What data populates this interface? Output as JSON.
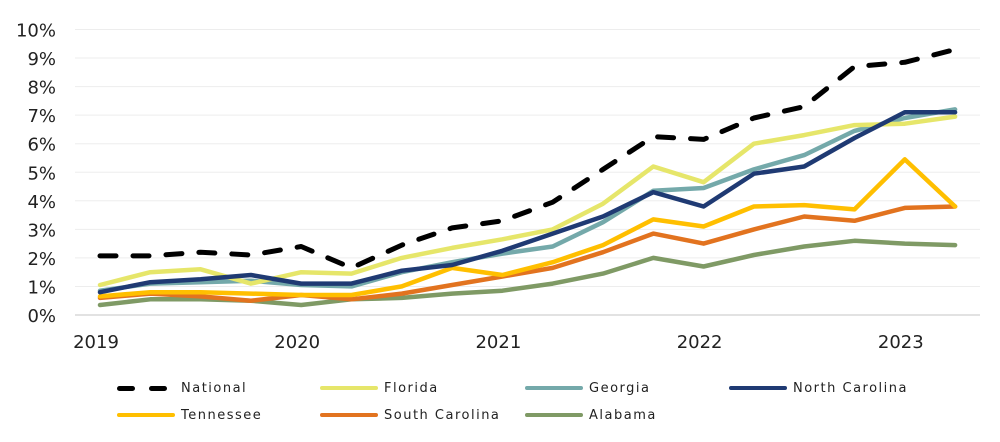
{
  "chart_data": {
    "type": "line",
    "title": "",
    "xlabel": "",
    "ylabel": "",
    "ylim": [
      0,
      10
    ],
    "y_ticks": [
      "0%",
      "1%",
      "2%",
      "3%",
      "4%",
      "5%",
      "6%",
      "7%",
      "8%",
      "9%",
      "10%"
    ],
    "y_tick_values": [
      0,
      1,
      2,
      3,
      4,
      5,
      6,
      7,
      8,
      9,
      10
    ],
    "x_tick_labels": [
      "2019",
      "2020",
      "2021",
      "2022",
      "2023"
    ],
    "x_tick_indices": [
      0,
      4,
      8,
      12,
      16
    ],
    "x": [
      "2019 Q1",
      "2019 Q2",
      "2019 Q3",
      "2019 Q4",
      "2020 Q1",
      "2020 Q2",
      "2020 Q3",
      "2020 Q4",
      "2021 Q1",
      "2021 Q2",
      "2021 Q3",
      "2021 Q4",
      "2022 Q1",
      "2022 Q2",
      "2022 Q3",
      "2022 Q4",
      "2023 Q1",
      "2023 Q2"
    ],
    "grid": true,
    "legend_position": "bottom",
    "series": [
      {
        "name": "National",
        "color": "#000000",
        "dashed": true,
        "values": [
          2.07,
          2.07,
          2.2,
          2.1,
          2.4,
          1.65,
          2.45,
          3.05,
          3.3,
          3.95,
          5.1,
          6.25,
          6.15,
          6.9,
          7.3,
          8.7,
          8.85,
          9.3
        ]
      },
      {
        "name": "Florida",
        "color": "#E6E66A",
        "dashed": false,
        "values": [
          1.05,
          1.5,
          1.6,
          1.1,
          1.5,
          1.45,
          2.0,
          2.35,
          2.65,
          3.0,
          3.9,
          5.2,
          4.65,
          6.0,
          6.3,
          6.65,
          6.7,
          6.95
        ]
      },
      {
        "name": "Georgia",
        "color": "#74A9AA",
        "dashed": false,
        "values": [
          0.85,
          1.1,
          1.15,
          1.2,
          1.05,
          1.0,
          1.5,
          1.85,
          2.15,
          2.4,
          3.25,
          4.35,
          4.45,
          5.1,
          5.6,
          6.45,
          6.9,
          7.2
        ]
      },
      {
        "name": "North Carolina",
        "color": "#1F3A73",
        "dashed": false,
        "values": [
          0.8,
          1.15,
          1.25,
          1.4,
          1.1,
          1.1,
          1.55,
          1.75,
          2.25,
          2.85,
          3.45,
          4.3,
          3.8,
          4.95,
          5.2,
          6.2,
          7.1,
          7.1
        ]
      },
      {
        "name": "Tennessee",
        "color": "#FFBF00",
        "dashed": false,
        "values": [
          0.65,
          0.8,
          0.8,
          0.75,
          0.7,
          0.7,
          1.0,
          1.65,
          1.4,
          1.85,
          2.45,
          3.35,
          3.1,
          3.8,
          3.85,
          3.7,
          5.45,
          3.8
        ]
      },
      {
        "name": "South Carolina",
        "color": "#E2731F",
        "dashed": false,
        "values": [
          0.6,
          0.75,
          0.65,
          0.5,
          0.7,
          0.55,
          0.75,
          1.05,
          1.35,
          1.65,
          2.2,
          2.85,
          2.5,
          3.0,
          3.45,
          3.3,
          3.75,
          3.8
        ]
      },
      {
        "name": "Alabama",
        "color": "#7F9A65",
        "dashed": false,
        "values": [
          0.35,
          0.55,
          0.55,
          0.5,
          0.35,
          0.55,
          0.6,
          0.75,
          0.85,
          1.1,
          1.45,
          2.0,
          1.7,
          2.1,
          2.4,
          2.6,
          2.5,
          2.45
        ]
      }
    ]
  },
  "legend": {
    "items": [
      {
        "label": "National"
      },
      {
        "label": "Florida"
      },
      {
        "label": "Georgia"
      },
      {
        "label": "North Carolina"
      },
      {
        "label": "Tennessee"
      },
      {
        "label": "South Carolina"
      },
      {
        "label": "Alabama"
      }
    ]
  }
}
